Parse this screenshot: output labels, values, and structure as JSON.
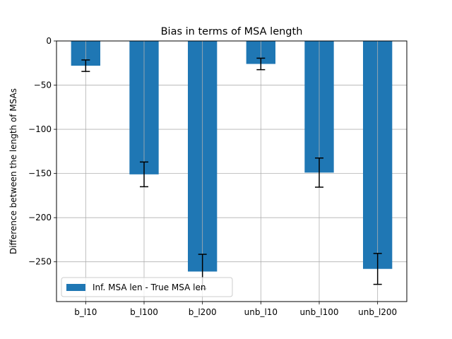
{
  "chart_data": {
    "type": "bar",
    "title": "Bias in terms of MSA length",
    "xlabel": "",
    "ylabel": "Difference between the length of MSAs",
    "categories": [
      "b_l10",
      "b_l100",
      "b_l200",
      "unb_l10",
      "unb_l100",
      "unb_l200"
    ],
    "series": [
      {
        "name": "Inf. MSA len - True MSA len",
        "values": [
          -28,
          -151,
          -261,
          -26,
          -149,
          -258
        ],
        "errors": [
          6.5,
          14,
          19.5,
          6.5,
          16.5,
          17.5
        ]
      }
    ],
    "ylim": [
      -295,
      0
    ],
    "yticks": [
      0,
      -50,
      -100,
      -150,
      -200,
      -250
    ],
    "ytick_labels": [
      "0",
      "−50",
      "−100",
      "−150",
      "−200",
      "−250"
    ],
    "grid": true,
    "legend_position": "lower-left",
    "colors": {
      "bar": "#1f77b4",
      "grid": "#b0b0b0",
      "errorbar": "#000000"
    }
  }
}
